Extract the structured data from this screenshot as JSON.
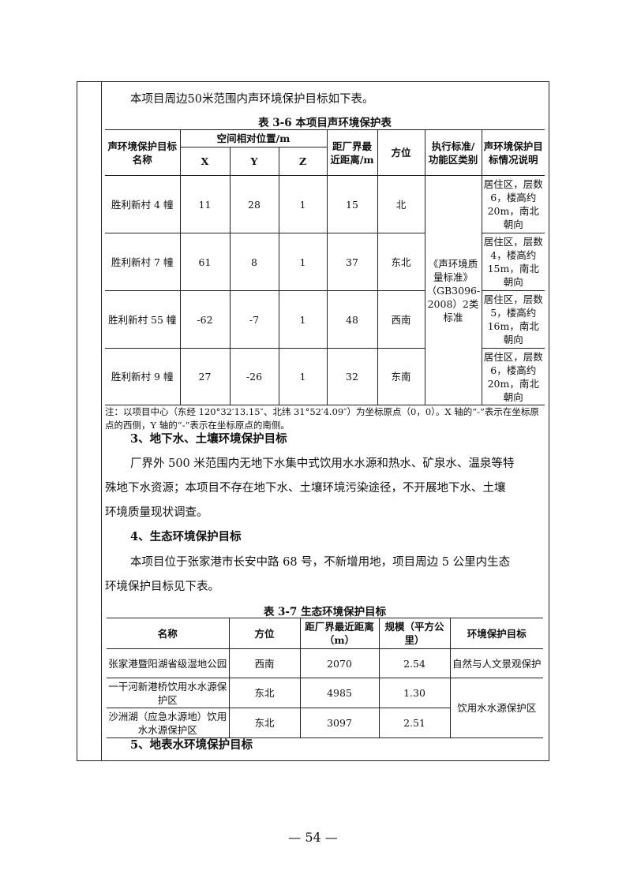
{
  "intro": "本项目周边50米范围内声环境保护目标如下表。",
  "table36": {
    "caption": "表 3-6  本项目声环境保护表",
    "headers": {
      "name": "声环境保护目标名称",
      "position": "空间相对位置/m",
      "x": "X",
      "y": "Y",
      "z": "Z",
      "distance": "距厂界最近距离/m",
      "direction": "方位",
      "standard": "执行标准/功能区类别",
      "description": "声环境保护目标情况说明"
    },
    "standard_value": "《声环境质量标准》（GB3096-2008）2类标准",
    "rows": [
      {
        "name": "胜利新村 4 幢",
        "x": "11",
        "y": "28",
        "z": "1",
        "distance": "15",
        "direction": "北",
        "description": "居住区，层数 6，楼高约 20m，南北朝向"
      },
      {
        "name": "胜利新村 7 幢",
        "x": "61",
        "y": "8",
        "z": "1",
        "distance": "37",
        "direction": "东北",
        "description": "居住区，层数 4，楼高约 15m，南北朝向"
      },
      {
        "name": "胜利新村 55 幢",
        "x": "-62",
        "y": "-7",
        "z": "1",
        "distance": "48",
        "direction": "西南",
        "description": "居住区，层数 5，楼高约 16m，南北朝向"
      },
      {
        "name": "胜利新村 9 幢",
        "x": "27",
        "y": "-26",
        "z": "1",
        "distance": "32",
        "direction": "东南",
        "description": "居住区，层数 6，楼高约 20m，南北朝向"
      }
    ],
    "note": "注：以项目中心（东经 120°32′13.15″、北纬 31°52′4.09″）为坐标原点（0，0）。X 轴的“-”表示在坐标原点的西侧，Y 轴的“-”表示在坐标原点的南侧。"
  },
  "section3": {
    "heading": "3、地下水、土壤环境保护目标",
    "lines": [
      "厂界外 500 米范围内无地下水集中式饮用水水源和热水、矿泉水、温泉等特",
      "殊地下水资源；本项目不存在地下水、土壤环境污染途径，不开展地下水、土壤",
      "环境质量现状调查。"
    ]
  },
  "section4": {
    "heading": "4、生态环境保护目标",
    "lines": [
      "本项目位于张家港市长安中路 68 号，不新增用地，项目周边 5 公里内生态",
      "环境保护目标见下表。"
    ]
  },
  "table37": {
    "caption": "表 3-7  生态环境保护目标",
    "headers": [
      "名称",
      "方位",
      "距厂界最近距离（m）",
      "规模（平方公里）",
      "环境保护目标"
    ],
    "rows": [
      {
        "name": "张家港暨阳湖省级湿地公园",
        "direction": "西南",
        "distance": "2070",
        "scale": "2.54",
        "target": "自然与人文景观保护"
      },
      {
        "name": "一干河新港桥饮用水水源保护区",
        "direction": "东北",
        "distance": "4985",
        "scale": "1.30",
        "target": "饮用水水源保护区"
      },
      {
        "name": "沙洲湖（应急水源地）饮用水水源保护区",
        "direction": "东北",
        "distance": "3097",
        "scale": "2.51"
      }
    ]
  },
  "section5": {
    "heading": "5、地表水环境保护目标"
  },
  "page_number": "—  54  —"
}
